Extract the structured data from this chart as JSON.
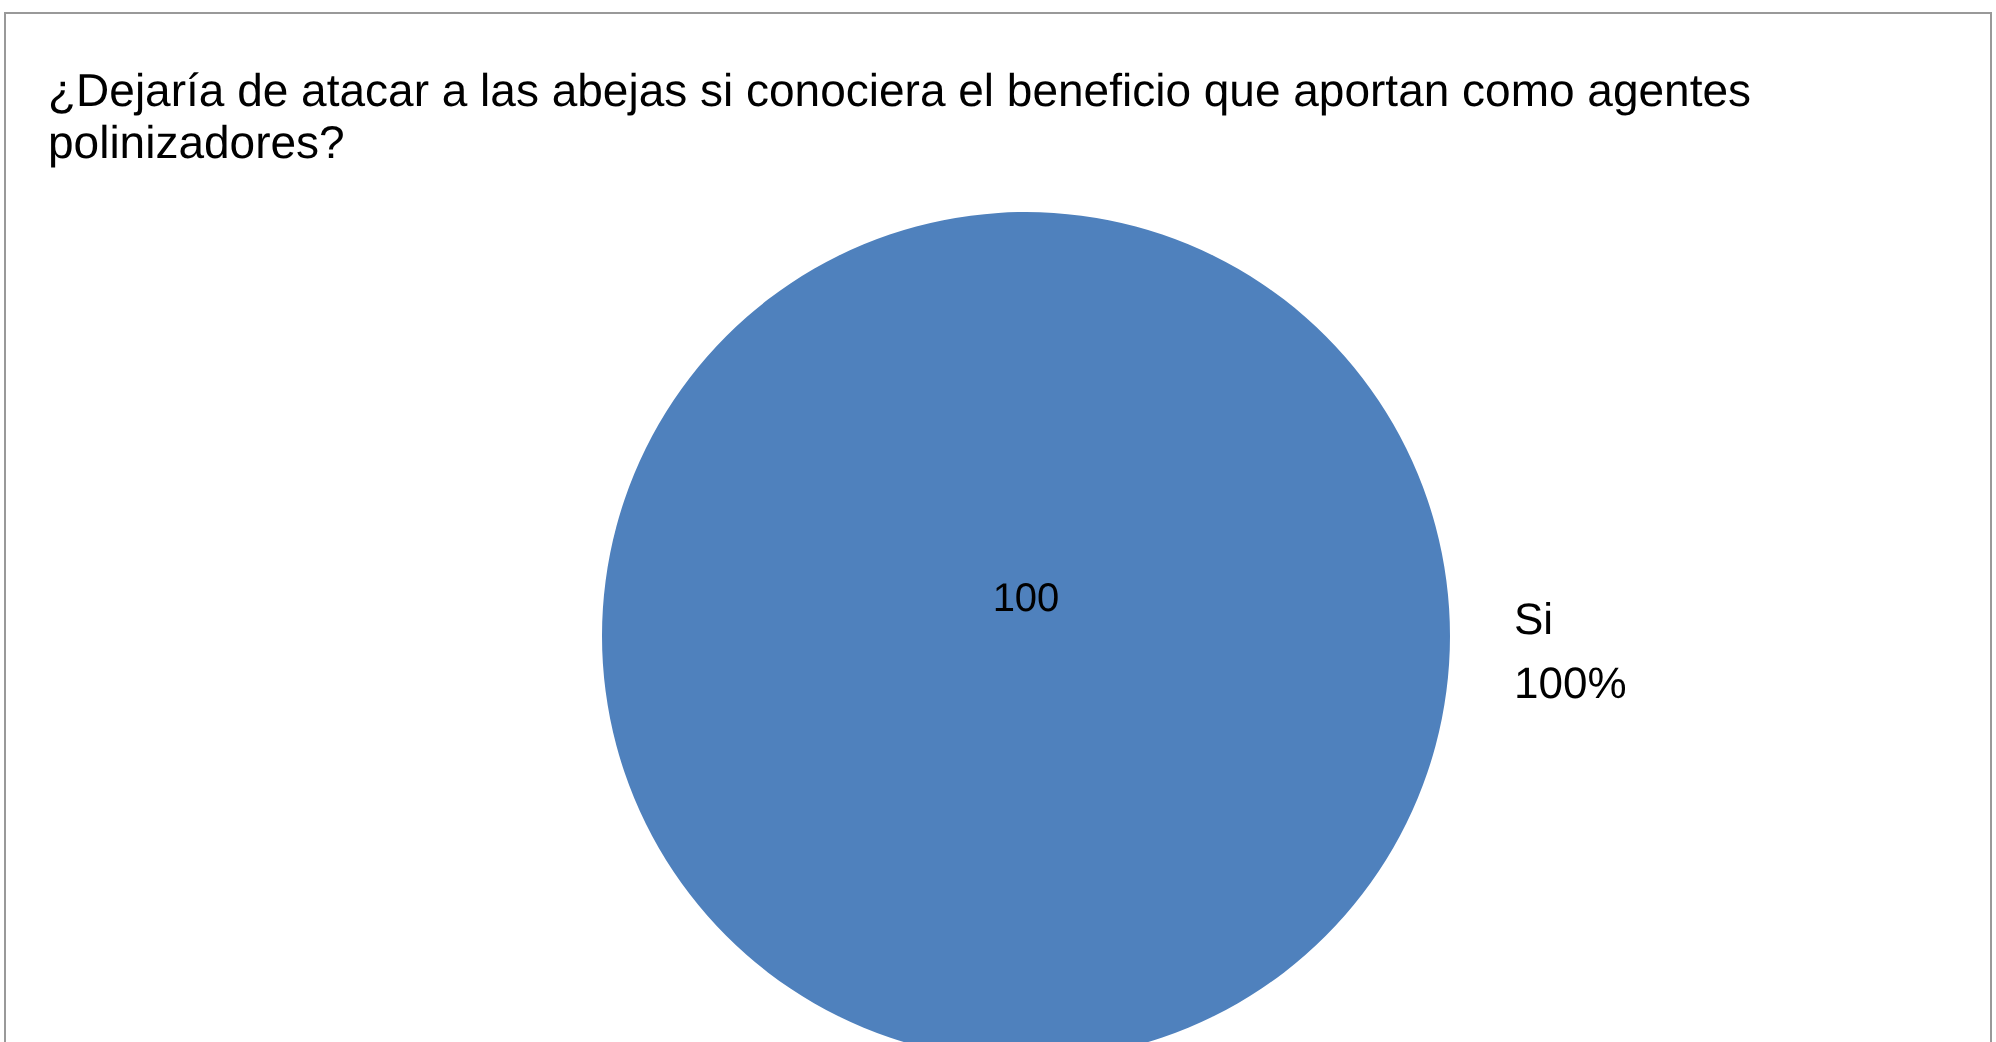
{
  "chart_data": {
    "type": "pie",
    "title": "¿Dejaría de atacar a las abejas si conociera el beneficio que aportan como agentes polinizadores?",
    "categories": [
      "Si"
    ],
    "values": [
      100
    ],
    "colors": [
      "#4f81bd"
    ],
    "data_labels": true,
    "annotations": [
      "100%"
    ],
    "legend": false
  }
}
